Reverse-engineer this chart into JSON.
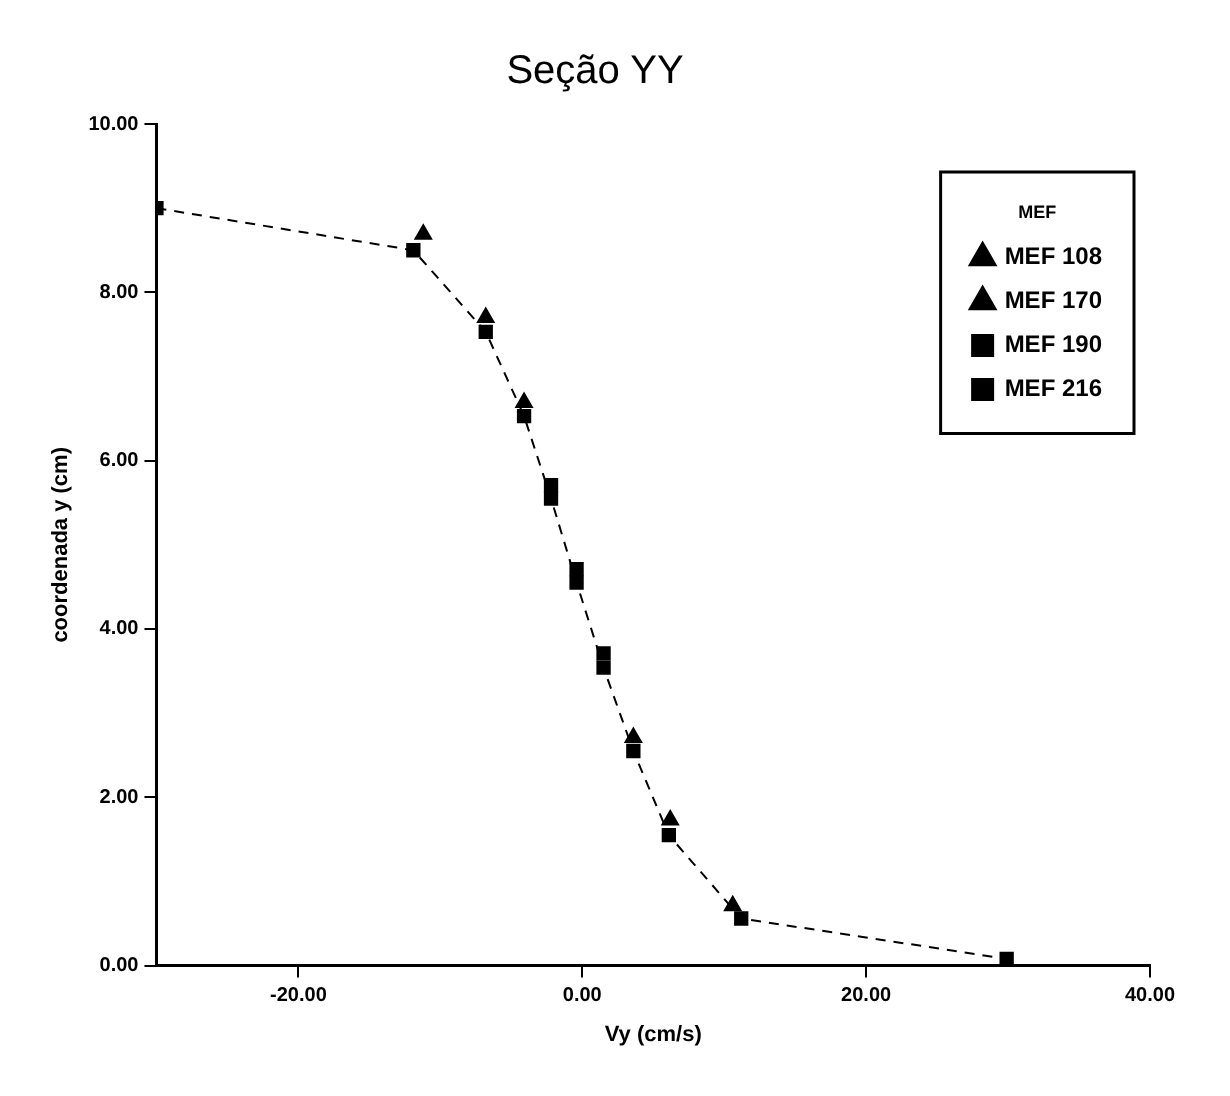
{
  "chart_data": {
    "type": "scatter",
    "title": "Seção YY",
    "xlabel": "Vy (cm/s)",
    "ylabel": "coordenada y (cm)",
    "legend_title": "MEF",
    "legend": "top right",
    "grid": false,
    "xlim": [
      -30,
      40
    ],
    "xticks": [
      {
        "value": -20,
        "label": "-20.00"
      },
      {
        "value": 0,
        "label": "0.00"
      },
      {
        "value": 20,
        "label": "20.00"
      },
      {
        "value": 40,
        "label": "40.00"
      }
    ],
    "ylim": [
      0,
      10
    ],
    "yticks": [
      {
        "value": 0,
        "label": "0.00"
      },
      {
        "value": 2,
        "label": "2.00"
      },
      {
        "value": 4,
        "label": "4.00"
      },
      {
        "value": 6,
        "label": "6.00"
      },
      {
        "value": 8,
        "label": "8.00"
      },
      {
        "value": 10,
        "label": "10.00"
      }
    ],
    "series": [
      {
        "name": "MEF 108",
        "type": "scatter",
        "marker": "triangle",
        "color": "#000000"
      },
      {
        "name": "MEF 170",
        "type": "scatter",
        "marker": "triangle",
        "color": "#000000",
        "x": [
          -11.2,
          -6.8,
          -4.1,
          3.6,
          6.2,
          10.6
        ],
        "values": [
          8.69,
          7.7,
          6.69,
          2.71,
          1.73,
          0.71
        ]
      },
      {
        "name": "MEF 190",
        "type": "scatter",
        "marker": "square",
        "color": "#000000",
        "x": [
          -2.2,
          -0.4,
          1.5
        ],
        "values": [
          5.71,
          4.71,
          3.71
        ]
      },
      {
        "name": "MEF 216",
        "type": "line",
        "marker": "square",
        "line_style": "dashed",
        "color": "#000000",
        "x": [
          -30,
          -11.9,
          -6.8,
          -4.1,
          -2.2,
          -0.4,
          1.5,
          3.6,
          6.1,
          11.2,
          29.9
        ],
        "values": [
          9.0,
          8.5,
          7.53,
          6.53,
          5.55,
          4.55,
          3.54,
          2.55,
          1.55,
          0.56,
          0.08
        ]
      }
    ]
  }
}
